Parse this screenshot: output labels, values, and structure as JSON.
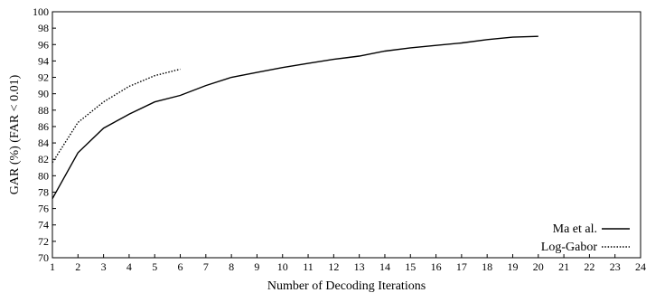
{
  "chart_data": {
    "type": "line",
    "xlabel": "Number of Decoding Iterations",
    "ylabel": "GAR (%) (FAR < 0.01)",
    "xlim": [
      1,
      24
    ],
    "ylim": [
      70,
      100
    ],
    "x_ticks": [
      1,
      2,
      3,
      4,
      5,
      6,
      7,
      8,
      9,
      10,
      11,
      12,
      13,
      14,
      15,
      16,
      17,
      18,
      19,
      20,
      21,
      22,
      23,
      24
    ],
    "y_ticks": [
      70,
      72,
      74,
      76,
      78,
      80,
      82,
      84,
      86,
      88,
      90,
      92,
      94,
      96,
      98,
      100
    ],
    "grid": false,
    "legend_position": "bottom-right",
    "series": [
      {
        "name": "Ma et al.",
        "line_style": "solid",
        "color": "#000000",
        "x": [
          1,
          2,
          3,
          4,
          5,
          6,
          7,
          8,
          9,
          10,
          11,
          12,
          13,
          14,
          15,
          16,
          17,
          18,
          19,
          20
        ],
        "y": [
          77.2,
          82.8,
          85.8,
          87.5,
          89.0,
          89.8,
          91.0,
          92.0,
          92.6,
          93.2,
          93.7,
          94.2,
          94.6,
          95.2,
          95.6,
          95.9,
          96.2,
          96.6,
          96.9,
          97.0
        ]
      },
      {
        "name": "Log-Gabor",
        "line_style": "dotted",
        "color": "#000000",
        "x": [
          1,
          2,
          3,
          4,
          5,
          6
        ],
        "y": [
          81.6,
          86.5,
          89.0,
          90.9,
          92.2,
          93.0
        ]
      }
    ]
  }
}
